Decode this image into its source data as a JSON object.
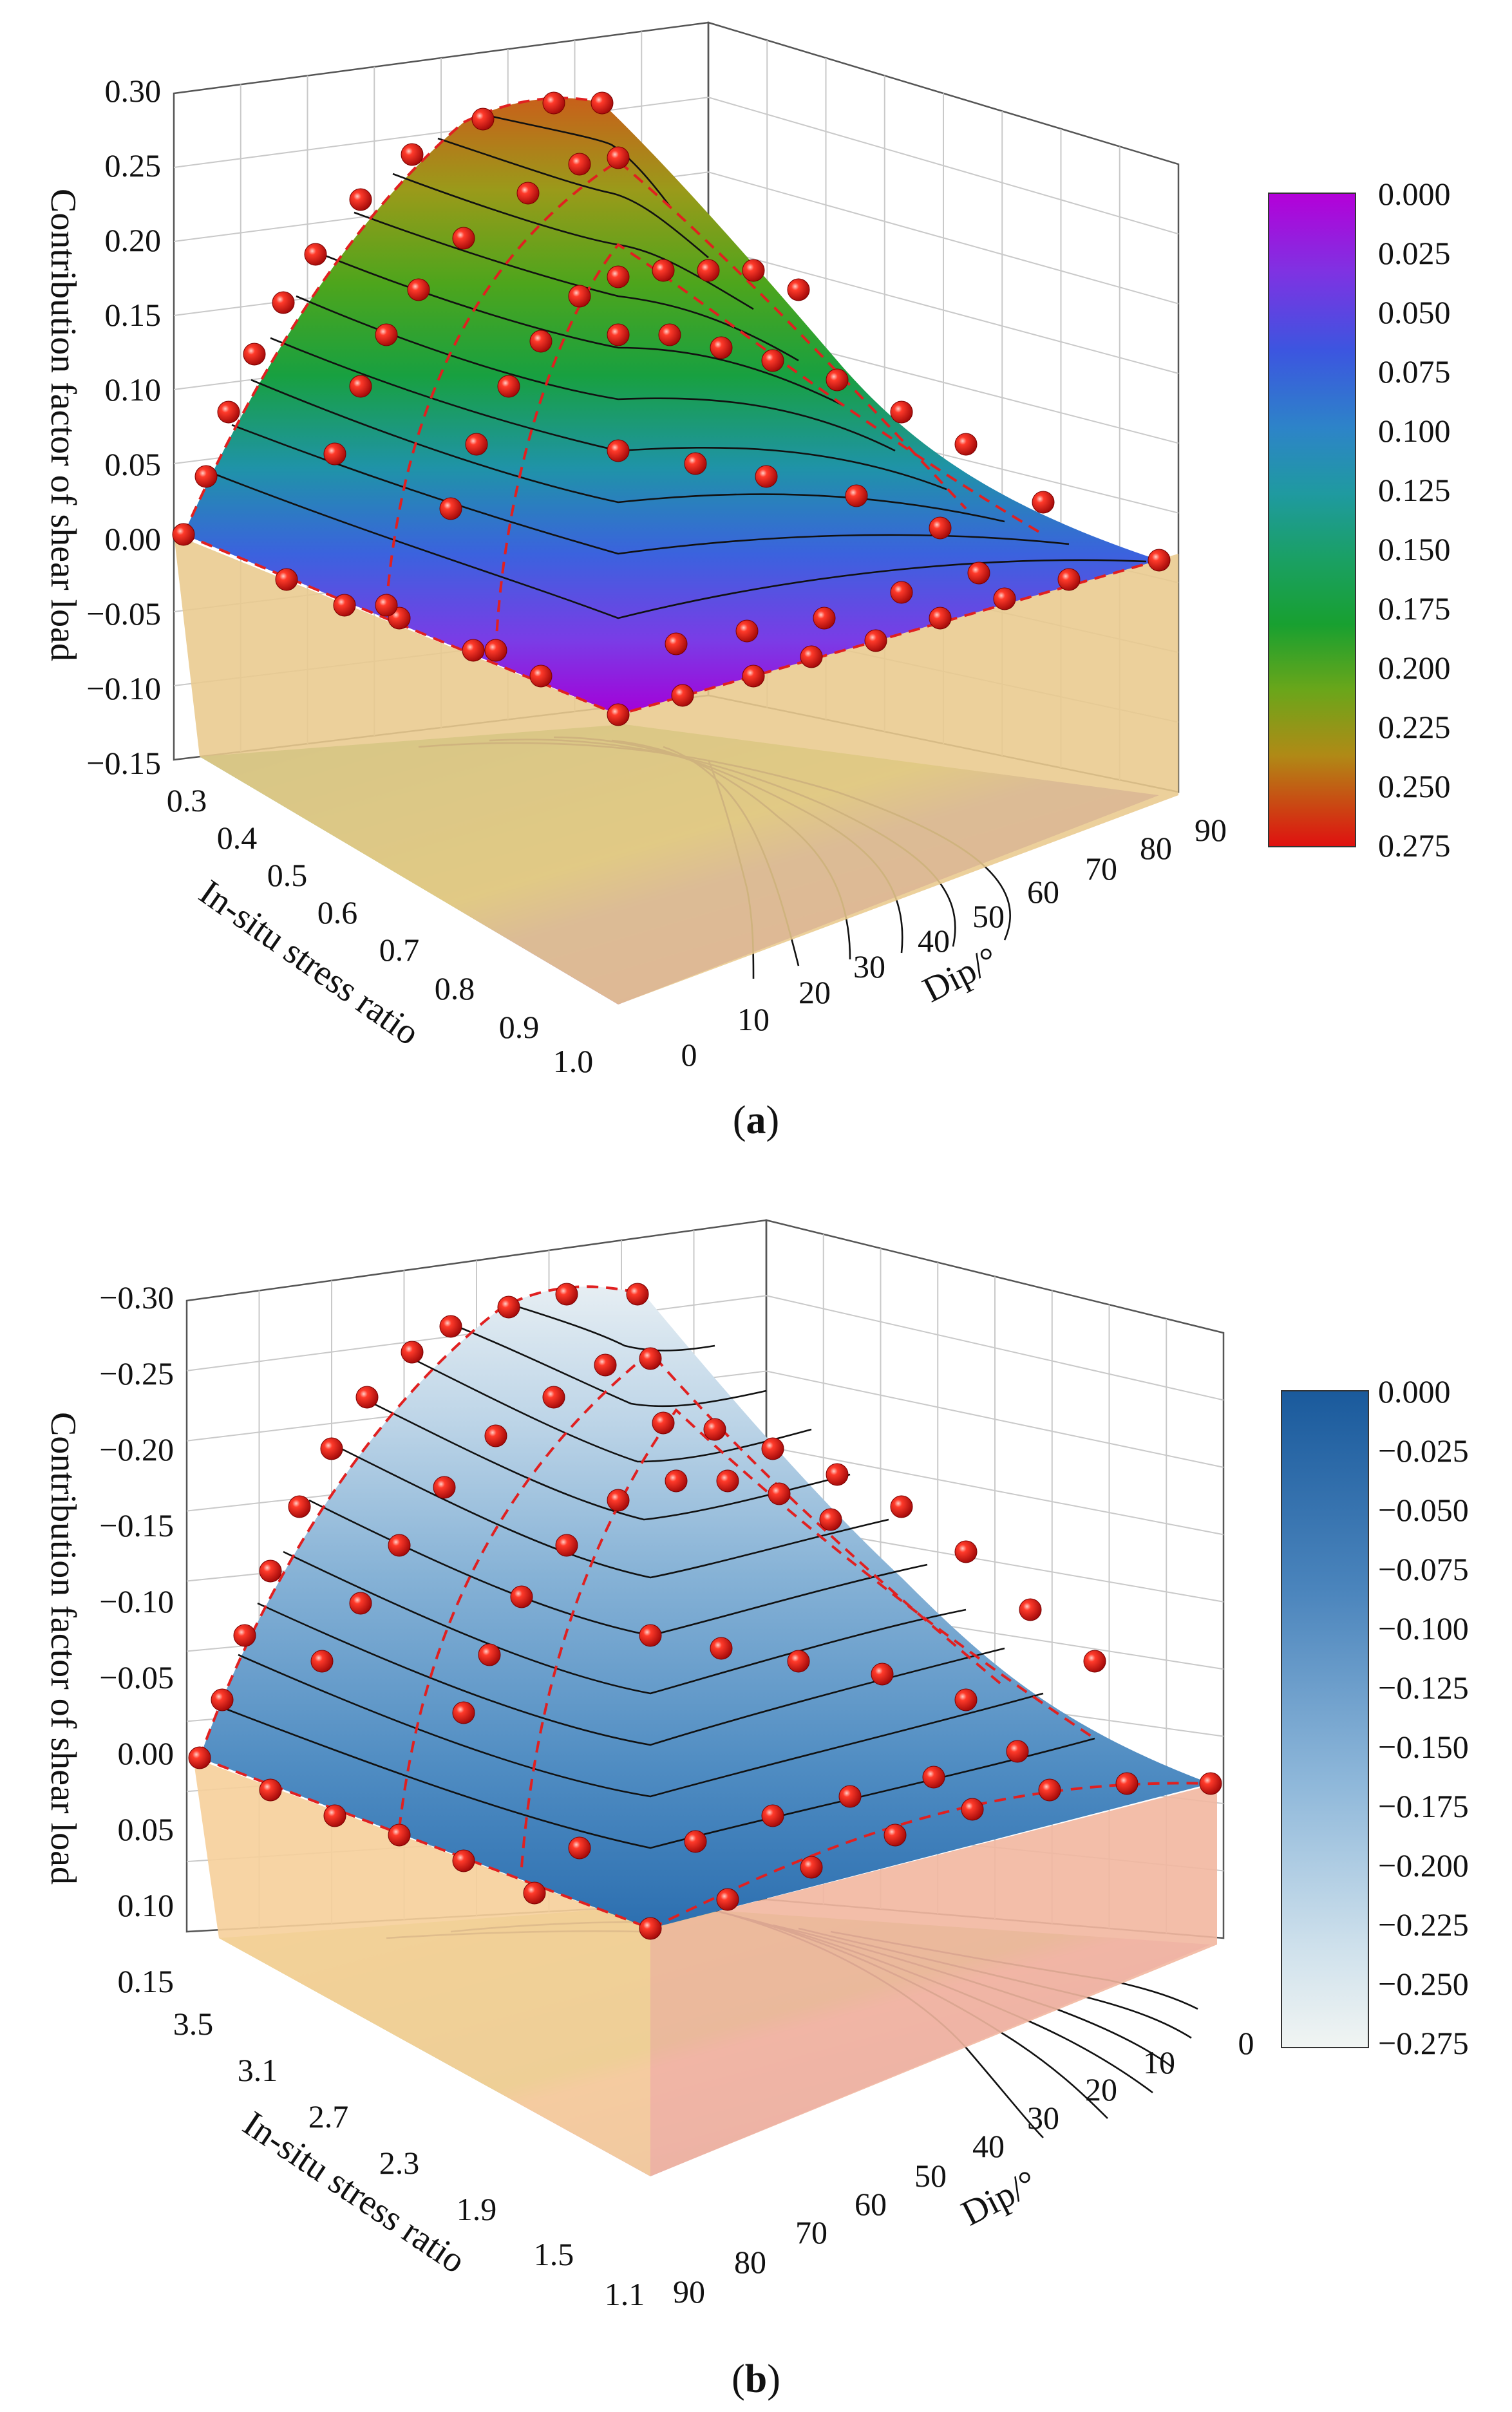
{
  "chart_data": [
    {
      "type": "surface3d",
      "panel": "a",
      "caption": "(a)",
      "zlabel": "Contribution factor of shear load",
      "xlabel": "In-situ stress ratio",
      "ylabel": "Dip/°",
      "z_ticks": [
        "0.30",
        "0.25",
        "0.20",
        "0.15",
        "0.10",
        "0.05",
        "0.00",
        "−0.05",
        "−0.10",
        "−0.15"
      ],
      "x_ticks": [
        "0.3",
        "0.4",
        "0.5",
        "0.6",
        "0.7",
        "0.8",
        "0.9",
        "1.0"
      ],
      "y_ticks": [
        "0",
        "10",
        "20",
        "30",
        "40",
        "50",
        "60",
        "70",
        "80",
        "90"
      ],
      "zlim": [
        -0.15,
        0.3
      ],
      "xlim": [
        0.3,
        1.0
      ],
      "ylim": [
        0,
        90
      ],
      "colorbar": {
        "ticks": [
          "0.000",
          "0.025",
          "0.050",
          "0.075",
          "0.100",
          "0.125",
          "0.150",
          "0.175",
          "0.200",
          "0.225",
          "0.250",
          "0.275"
        ],
        "colors": [
          "#b100d8",
          "#7a2fe0",
          "#3f55e0",
          "#2d84c8",
          "#1f9aa0",
          "#1ba070",
          "#1aa036",
          "#4ea51c",
          "#8aa818",
          "#b08a16",
          "#c44a14",
          "#dc1212"
        ]
      },
      "peak_value": 0.28,
      "series": [
        {
          "name": "In-situ stress ratio 0.3",
          "dip": [
            0,
            10,
            20,
            30,
            40,
            50,
            60,
            70,
            80,
            90
          ],
          "values": [
            0.0,
            0.09,
            0.17,
            0.23,
            0.27,
            0.28,
            0.26,
            0.19,
            0.08,
            0.0
          ]
        }
      ]
    },
    {
      "type": "surface3d",
      "panel": "b",
      "caption": "(b)",
      "zlabel": "Contribution factor of shear load",
      "xlabel": "In-situ stress ratio",
      "ylabel": "Dip/°",
      "z_ticks": [
        "−0.30",
        "−0.25",
        "−0.20",
        "−0.15",
        "−0.10",
        "−0.05",
        "0.00",
        "0.05",
        "0.10",
        "0.15"
      ],
      "x_ticks": [
        "3.5",
        "3.1",
        "2.7",
        "2.3",
        "1.9",
        "1.5",
        "1.1"
      ],
      "y_ticks": [
        "90",
        "80",
        "70",
        "60",
        "50",
        "40",
        "30",
        "20",
        "10",
        "0"
      ],
      "zlim": [
        0.15,
        -0.3
      ],
      "xlim": [
        3.5,
        1.1
      ],
      "ylim": [
        90,
        0
      ],
      "colorbar": {
        "ticks": [
          "0.000",
          "−0.025",
          "−0.050",
          "−0.075",
          "−0.100",
          "−0.125",
          "−0.150",
          "−0.175",
          "−0.200",
          "−0.225",
          "−0.250",
          "−0.275"
        ],
        "colors": [
          "#1f5fa0",
          "#2a6aab",
          "#3876b4",
          "#4a84bc",
          "#5a92c4",
          "#6d9fca",
          "#82afd2",
          "#98bfdb",
          "#b0cfe3",
          "#c8deeb",
          "#dde9f1",
          "#eef3f3"
        ]
      },
      "peak_value": -0.29,
      "series": [
        {
          "name": "In-situ stress ratio 3.5",
          "dip": [
            90,
            80,
            70,
            60,
            50,
            40,
            30,
            20,
            10,
            0
          ],
          "values": [
            0.0,
            -0.09,
            -0.17,
            -0.24,
            -0.28,
            -0.29,
            -0.27,
            -0.2,
            -0.1,
            0.0
          ]
        }
      ]
    }
  ]
}
